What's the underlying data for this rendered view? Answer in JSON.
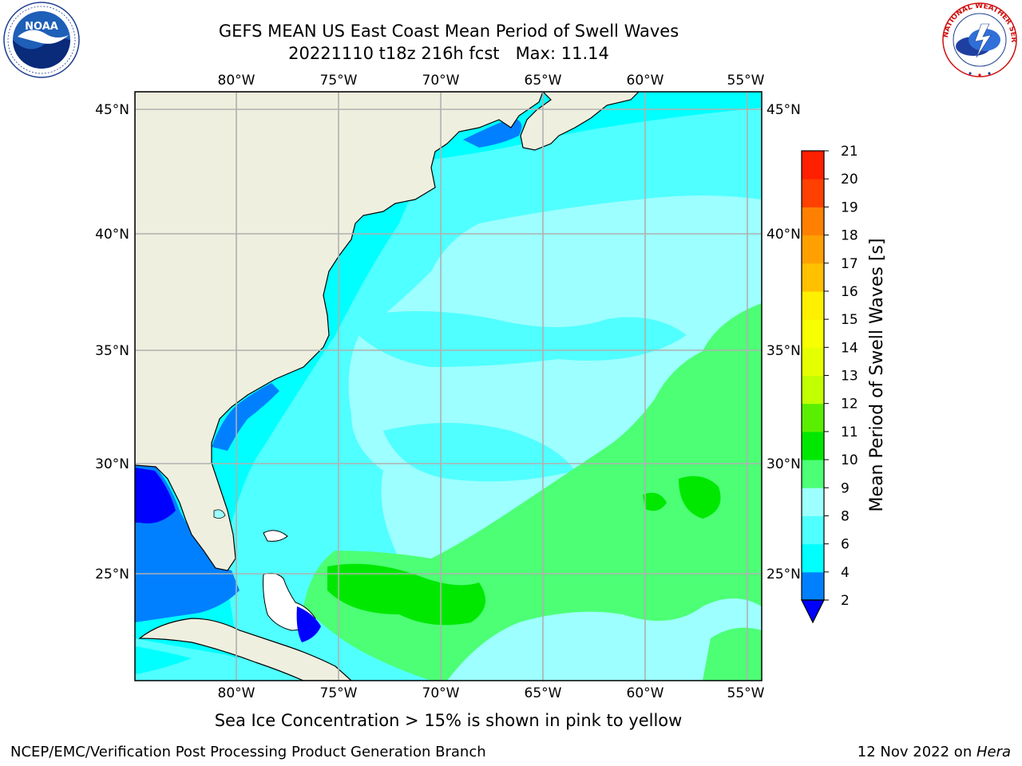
{
  "title": {
    "line1": "GEFS MEAN US East Coast Mean Period of Swell Waves",
    "line2_run": "20221110 t18z 216h fcst",
    "line2_max": "Max: 11.14"
  },
  "map": {
    "lon_ticks_top": [
      "80°W",
      "75°W",
      "70°W",
      "65°W",
      "60°W",
      "55°W"
    ],
    "lon_ticks_bottom": [
      "80°W",
      "75°W",
      "70°W",
      "65°W",
      "60°W",
      "55°W"
    ],
    "lat_ticks_left": [
      "45°N",
      "40°N",
      "35°N",
      "30°N",
      "25°N"
    ],
    "lat_ticks_right": [
      "45°N",
      "40°N",
      "35°N",
      "30°N",
      "25°N"
    ],
    "land_color": "#efefdf",
    "ocean_base_color": "#00ffff"
  },
  "colorbar": {
    "label": "Mean Period of Swell Waves [s]",
    "ticks": [
      "2",
      "4",
      "6",
      "8",
      "9",
      "10",
      "11",
      "12",
      "13",
      "14",
      "15",
      "16",
      "17",
      "18",
      "19",
      "20",
      "21"
    ],
    "colors": [
      "#0080ff",
      "#00ffff",
      "#50ffff",
      "#9dffff",
      "#4cff75",
      "#00e800",
      "#5aee00",
      "#c2ff00",
      "#e6ff00",
      "#f8ff00",
      "#ffef00",
      "#ffc000",
      "#ffa000",
      "#ff8000",
      "#ff4000",
      "#ff2000"
    ],
    "extend_color": "#0000ff"
  },
  "note": "Sea Ice Concentration > 15% is shown in pink to yellow",
  "footer": {
    "left": "NCEP/EMC/Verification Post Processing Product Generation Branch",
    "date": "12 Nov 2022 on ",
    "host": "Hera"
  },
  "logos": {
    "noaa_text": "NOAA",
    "nws_text": "NATIONAL WEATHER SERVICE"
  }
}
